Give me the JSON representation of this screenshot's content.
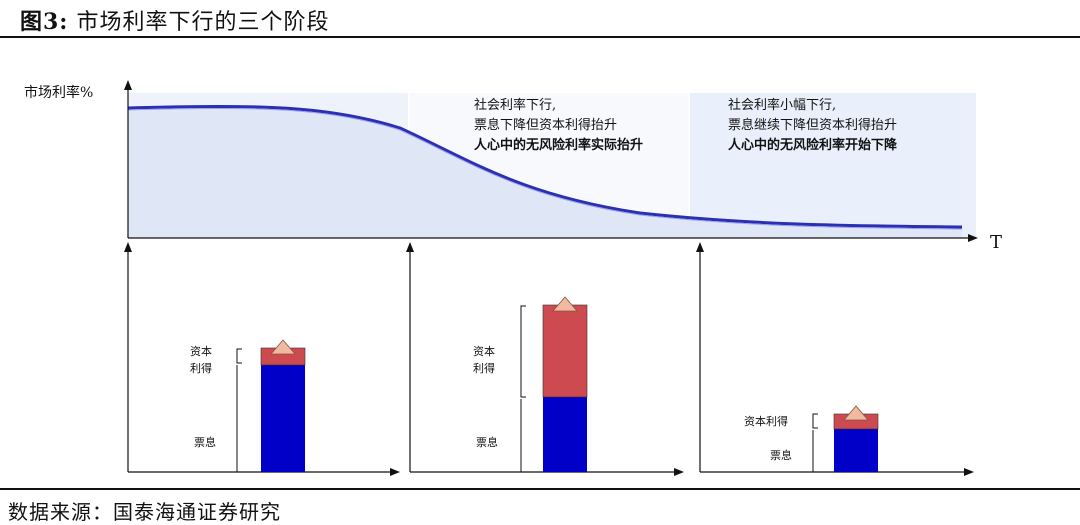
{
  "figure": {
    "label": "图3:",
    "title": "市场利率下行的三个阶段"
  },
  "source": "数据来源：国泰海通证券研究",
  "axes": {
    "y_label": "市场利率%",
    "x_label": "T"
  },
  "stage_notes": [
    {
      "lines": [
        "社会利率下行,",
        "票息下降但资本利得抬升"
      ],
      "bold_line": "人心中的无风险利率实际抬升"
    },
    {
      "lines": [
        "社会利率小幅下行,",
        "票息继续下降但资本利得抬升"
      ],
      "bold_line": "人心中的无风险利率开始下降"
    }
  ],
  "panels": [
    {
      "capital_label_1": "资本",
      "capital_label_2": "利得",
      "coupon_label": "票息",
      "coupon": 100,
      "capital": 16
    },
    {
      "capital_label_1": "资本",
      "capital_label_2": "利得",
      "coupon_label": "票息",
      "coupon": 75,
      "capital": 92
    },
    {
      "capital_label": "资本利得",
      "coupon_label": "票息",
      "coupon": 42,
      "capital": 15
    }
  ],
  "colors": {
    "coupon": "#0000c8",
    "capital": "#cd4b50",
    "triangle": "#f2b9a1",
    "curve": "#2b2fb4",
    "stage_fill": "#eaf0fb"
  }
}
